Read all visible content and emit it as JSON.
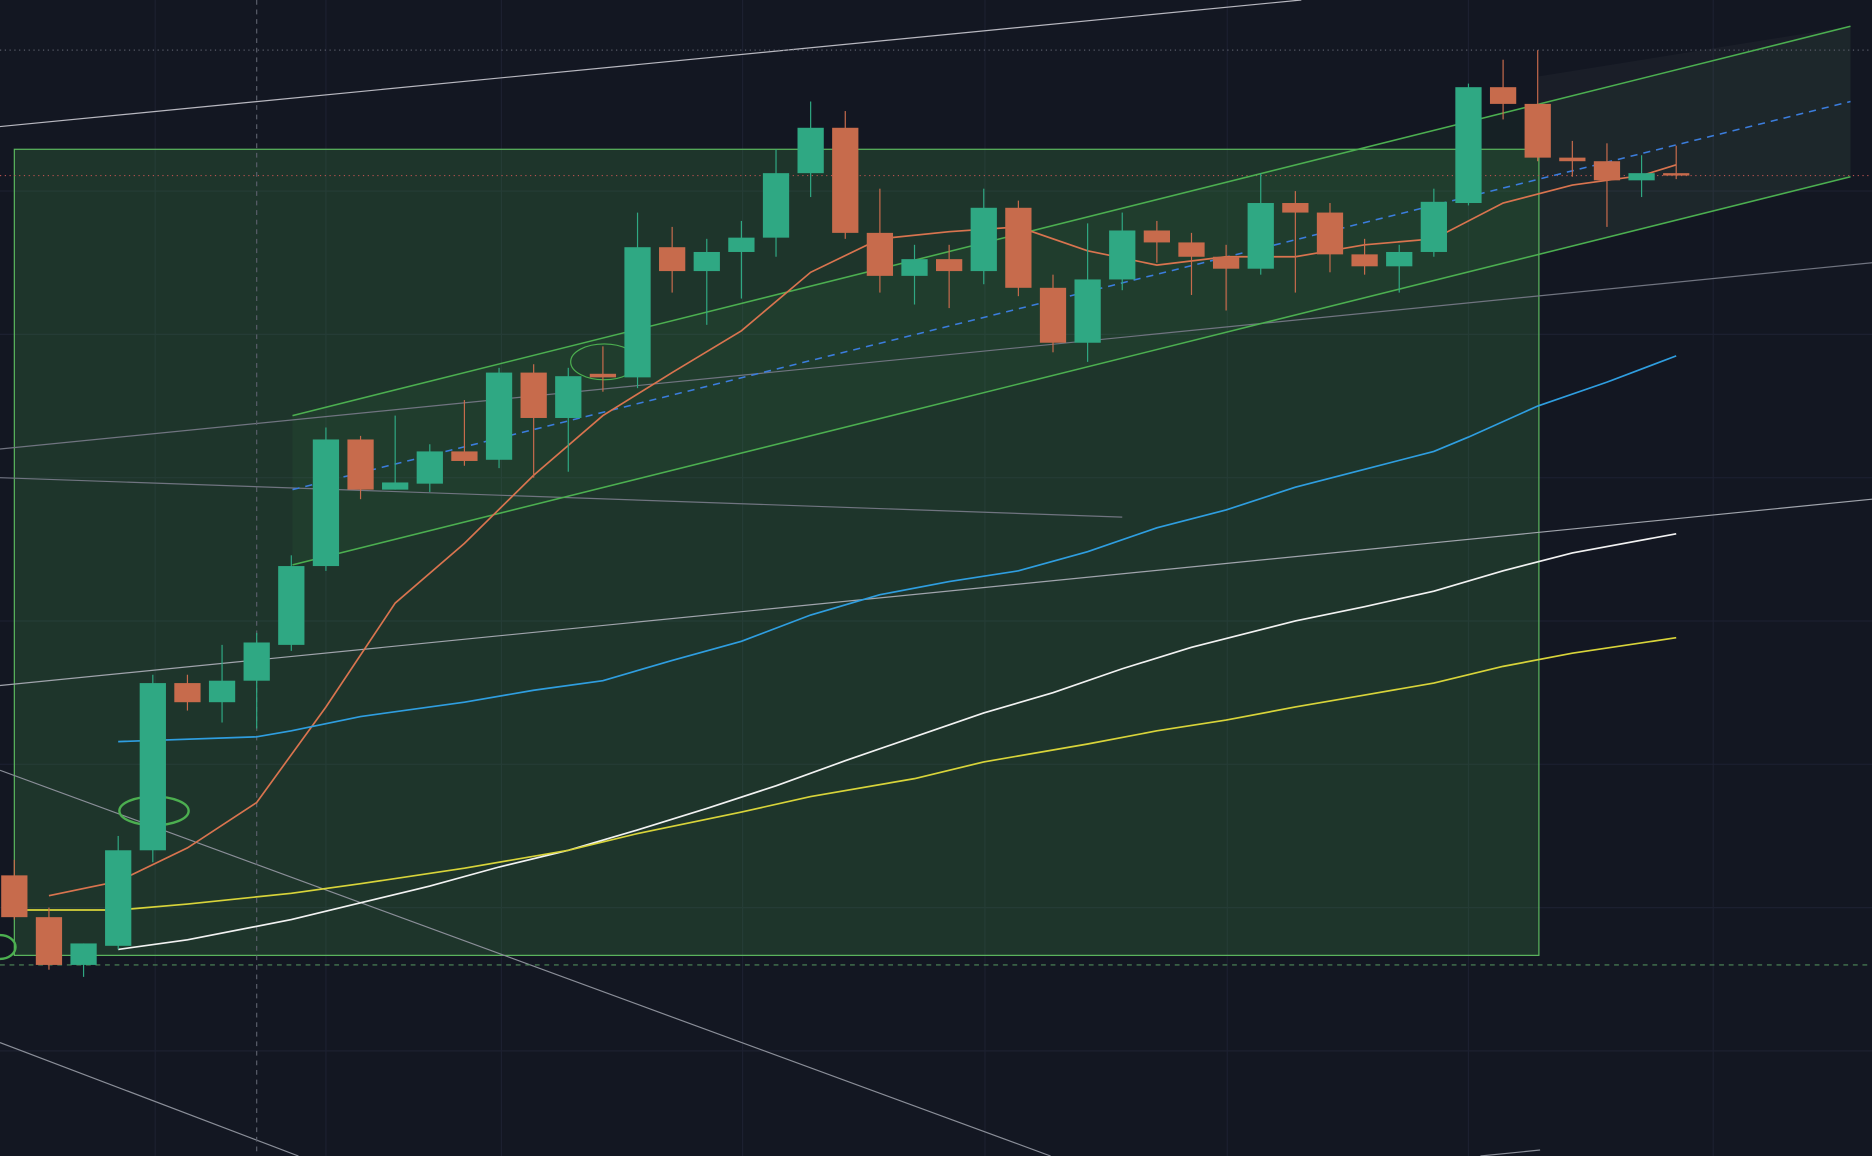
{
  "chart_data": {
    "type": "candlestick",
    "ylim": [
      0,
      968
    ],
    "up_color": "#2fa883",
    "down_color": "#c76b4c",
    "open": [
      235,
      200,
      160,
      176,
      256,
      396,
      380,
      398,
      428,
      494,
      600,
      558,
      563,
      590,
      583,
      656,
      618,
      655,
      652,
      761,
      741,
      757,
      769,
      823,
      861,
      773,
      737,
      751,
      741,
      794,
      727,
      681,
      734,
      775,
      765,
      753,
      743,
      798,
      790,
      755,
      745,
      757,
      798,
      895,
      881,
      836,
      833,
      817,
      823
    ],
    "high": [
      248,
      208,
      178,
      268,
      403,
      403,
      428,
      438,
      503,
      610,
      603,
      620,
      596,
      633,
      660,
      663,
      660,
      678,
      790,
      778,
      768,
      783,
      843,
      883,
      875,
      810,
      763,
      763,
      810,
      800,
      738,
      781,
      790,
      783,
      773,
      763,
      823,
      808,
      798,
      768,
      763,
      810,
      898,
      918,
      926,
      850,
      848,
      838,
      846
    ],
    "low": [
      198,
      156,
      150,
      173,
      246,
      373,
      363,
      358,
      423,
      490,
      550,
      558,
      556,
      578,
      576,
      568,
      573,
      640,
      643,
      723,
      696,
      718,
      753,
      803,
      768,
      723,
      713,
      710,
      730,
      720,
      673,
      665,
      725,
      748,
      721,
      708,
      738,
      723,
      740,
      738,
      723,
      753,
      796,
      868,
      833,
      820,
      778,
      803,
      818
    ],
    "close": [
      200,
      160,
      178,
      256,
      396,
      380,
      398,
      430,
      494,
      600,
      558,
      564,
      590,
      582,
      656,
      618,
      653,
      652,
      761,
      741,
      757,
      769,
      823,
      861,
      773,
      737,
      751,
      741,
      794,
      727,
      681,
      734,
      775,
      765,
      753,
      743,
      798,
      790,
      755,
      745,
      757,
      799,
      895,
      881,
      836,
      833,
      817,
      823,
      822
    ],
    "lines": [
      {
        "color": "#d9744f",
        "x": [
          1,
          3,
          5,
          7,
          9,
          11,
          13,
          15,
          17,
          19,
          21,
          23,
          25,
          27,
          29,
          31,
          33,
          35,
          37,
          39,
          41,
          43,
          45,
          47,
          48
        ],
        "values": [
          218,
          230,
          258,
          296,
          376,
          463,
          513,
          570,
          620,
          656,
          691,
          740,
          768,
          774,
          778,
          758,
          746,
          753,
          753,
          763,
          768,
          798,
          813,
          821,
          830
        ]
      },
      {
        "color": "#2f9ee0",
        "x": [
          3,
          7,
          8,
          10,
          13,
          15,
          17,
          19,
          21,
          23,
          25,
          27,
          29,
          31,
          33,
          35,
          37,
          39,
          41,
          42,
          44,
          46,
          48
        ],
        "values": [
          347,
          351,
          356,
          368,
          380,
          390,
          398,
          415,
          431,
          453,
          470,
          481,
          490,
          506,
          526,
          541,
          560,
          575,
          590,
          602,
          628,
          648,
          670
        ]
      },
      {
        "color": "#f2f2f2",
        "x": [
          3,
          5,
          8,
          10,
          12,
          14,
          16,
          18,
          20,
          22,
          24,
          26,
          28,
          30,
          32,
          34,
          37,
          39,
          41,
          43,
          45,
          48
        ],
        "values": [
          173,
          181,
          198,
          212,
          226,
          242,
          256,
          273,
          291,
          310,
          331,
          351,
          371,
          388,
          408,
          426,
          448,
          460,
          473,
          490,
          505,
          521
        ]
      },
      {
        "color": "#d8d43a",
        "x": [
          0,
          3,
          5,
          8,
          10,
          13,
          16,
          18,
          21,
          23,
          26,
          28,
          31,
          33,
          35,
          37,
          39,
          41,
          43,
          45,
          48
        ],
        "values": [
          206,
          206,
          211,
          220,
          228,
          241,
          256,
          270,
          288,
          301,
          316,
          330,
          345,
          356,
          365,
          376,
          386,
          396,
          410,
          421,
          434
        ]
      }
    ]
  }
}
